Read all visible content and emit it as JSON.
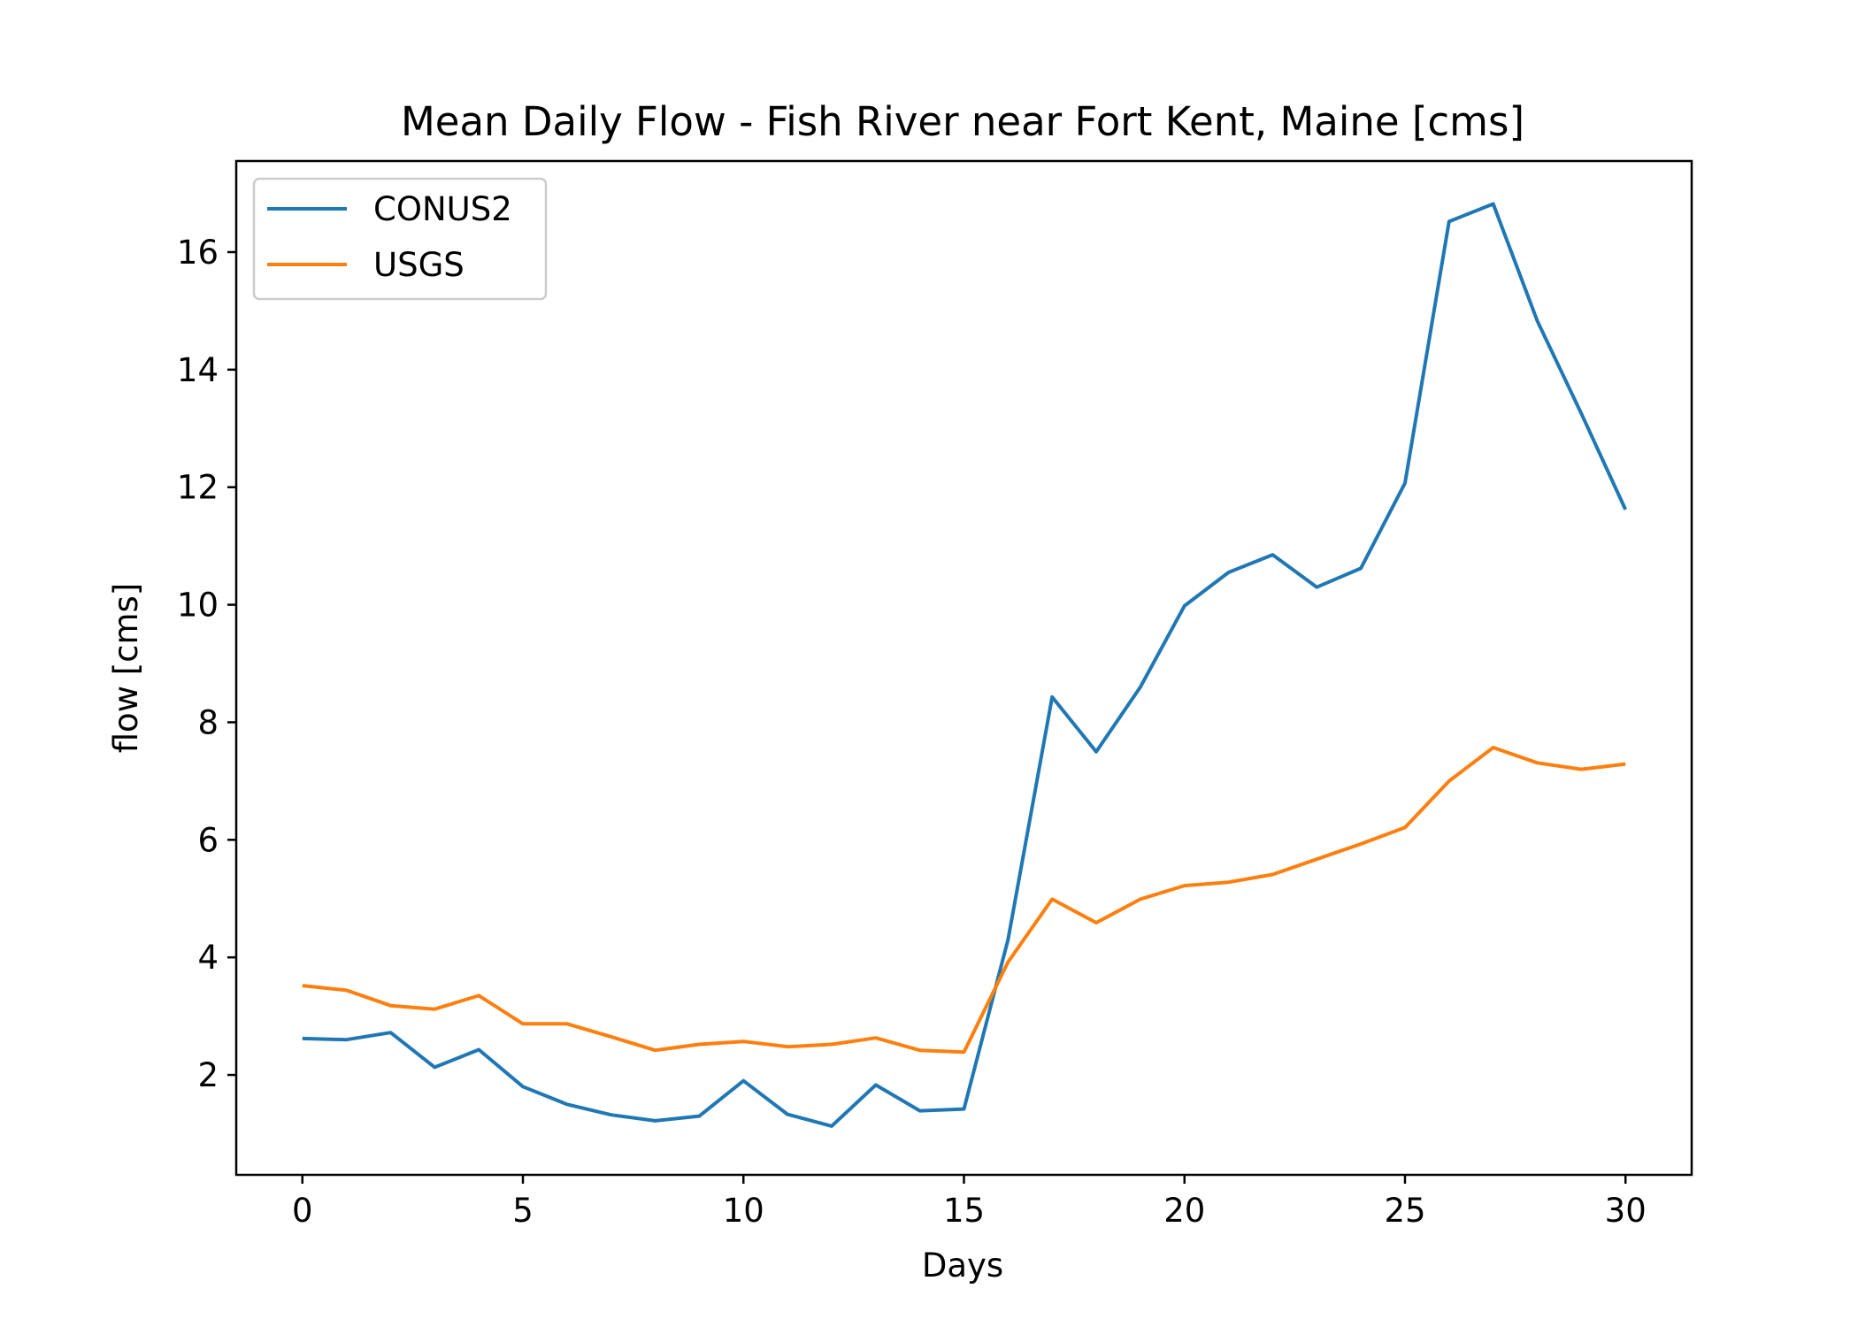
{
  "chart_data": {
    "type": "line",
    "title": "Mean Daily Flow - Fish River near Fort Kent, Maine [cms]",
    "xlabel": "Days",
    "ylabel": "flow [cms]",
    "xlim": [
      -1.5,
      31.5
    ],
    "ylim": [
      0.3,
      17.55
    ],
    "xticks": [
      0,
      5,
      10,
      15,
      20,
      25,
      30
    ],
    "yticks": [
      2,
      4,
      6,
      8,
      10,
      12,
      14,
      16
    ],
    "grid": false,
    "legend_position": "upper left",
    "x": [
      0,
      1,
      2,
      3,
      4,
      5,
      6,
      7,
      8,
      9,
      10,
      11,
      12,
      13,
      14,
      15,
      16,
      17,
      18,
      19,
      20,
      21,
      22,
      23,
      24,
      25,
      26,
      27,
      28,
      29,
      30
    ],
    "series": [
      {
        "name": "CONUS2",
        "color": "#1f77b4",
        "values": [
          2.62,
          2.6,
          2.72,
          2.13,
          2.43,
          1.8,
          1.5,
          1.32,
          1.22,
          1.3,
          1.9,
          1.33,
          1.13,
          1.83,
          1.39,
          1.42,
          4.3,
          8.43,
          7.5,
          8.6,
          9.98,
          10.55,
          10.85,
          10.3,
          10.62,
          12.07,
          16.52,
          16.82,
          14.83,
          13.25,
          11.62
        ]
      },
      {
        "name": "USGS",
        "color": "#ff7f0e",
        "values": [
          3.52,
          3.44,
          3.18,
          3.12,
          3.35,
          2.87,
          2.87,
          2.65,
          2.42,
          2.52,
          2.57,
          2.48,
          2.52,
          2.63,
          2.42,
          2.39,
          3.92,
          4.99,
          4.59,
          4.99,
          5.22,
          5.28,
          5.41,
          5.67,
          5.93,
          6.21,
          7.0,
          7.57,
          7.31,
          7.2,
          7.29
        ]
      }
    ]
  }
}
